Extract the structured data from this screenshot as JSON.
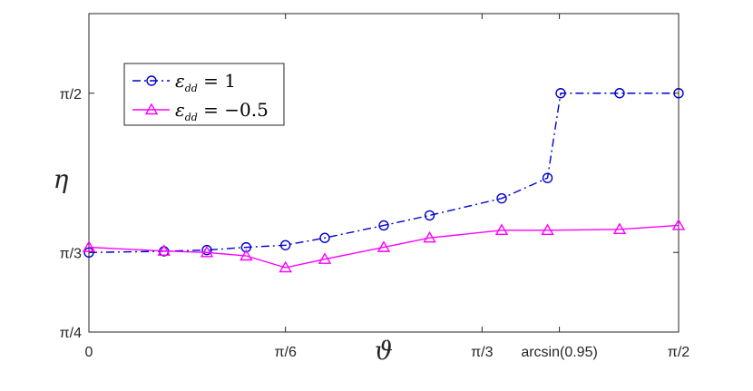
{
  "chart_data": {
    "type": "line",
    "title": "",
    "xlabel": "ϑ",
    "ylabel": "η",
    "xlim": [
      0,
      1.5708
    ],
    "ylim": [
      0.7854,
      1.8326
    ],
    "grid": false,
    "legend_position": "top-left",
    "x_ticks": [
      {
        "value": 0,
        "label": "0"
      },
      {
        "value": 0.5236,
        "label": "π/6"
      },
      {
        "value": 1.0472,
        "label": "π/3"
      },
      {
        "value": 1.2532,
        "label": "arcsin(0.95)"
      },
      {
        "value": 1.5708,
        "label": "π/2"
      }
    ],
    "y_ticks": [
      {
        "value": 0.7854,
        "label": "π/4"
      },
      {
        "value": 1.0472,
        "label": "π/3"
      },
      {
        "value": 1.5708,
        "label": "π/2"
      }
    ],
    "series": [
      {
        "name_main": "ε",
        "name_sub": "dd",
        "name_eq": " = 1",
        "color": "#0000CC",
        "marker": "circle",
        "dash": "dashdot",
        "points": [
          [
            0.0,
            1.047
          ],
          [
            0.2,
            1.051
          ],
          [
            0.3142,
            1.055
          ],
          [
            0.4189,
            1.064
          ],
          [
            0.5236,
            1.071
          ],
          [
            0.6283,
            1.095
          ],
          [
            0.7854,
            1.136
          ],
          [
            0.9076,
            1.169
          ],
          [
            1.0996,
            1.225
          ],
          [
            1.2217,
            1.292
          ],
          [
            1.2566,
            1.5708
          ],
          [
            1.4137,
            1.5708
          ],
          [
            1.5708,
            1.5708
          ]
        ]
      },
      {
        "name_main": "ε",
        "name_sub": "dd",
        "name_eq": " = −0.5",
        "color": "#FF00FF",
        "marker": "triangle",
        "dash": "solid",
        "points": [
          [
            0.0,
            1.064
          ],
          [
            0.2,
            1.052
          ],
          [
            0.3142,
            1.047
          ],
          [
            0.4189,
            1.036
          ],
          [
            0.5236,
            0.997
          ],
          [
            0.6283,
            1.025
          ],
          [
            0.7854,
            1.064
          ],
          [
            0.9076,
            1.095
          ],
          [
            1.0996,
            1.12
          ],
          [
            1.2217,
            1.12
          ],
          [
            1.4137,
            1.123
          ],
          [
            1.5708,
            1.136
          ]
        ]
      }
    ]
  }
}
